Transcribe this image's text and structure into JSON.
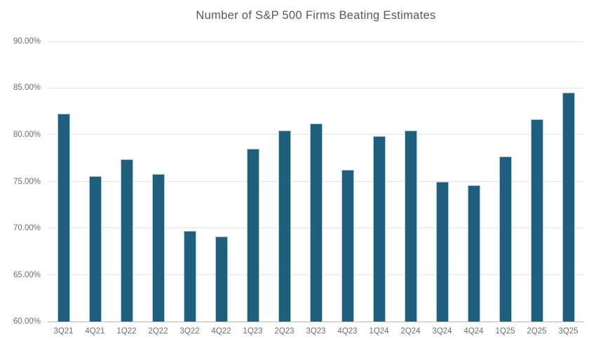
{
  "chart_data": {
    "type": "bar",
    "title": "Number of S&P 500 Firms Beating Estimates",
    "categories": [
      "3Q21",
      "4Q21",
      "1Q22",
      "2Q22",
      "3Q22",
      "4Q22",
      "1Q23",
      "2Q23",
      "3Q23",
      "4Q23",
      "1Q24",
      "2Q24",
      "3Q24",
      "4Q24",
      "1Q25",
      "2Q25",
      "3Q25"
    ],
    "values": [
      82.2,
      75.5,
      77.3,
      75.7,
      69.6,
      69.0,
      78.4,
      80.4,
      81.1,
      76.2,
      79.8,
      80.4,
      74.9,
      74.5,
      77.6,
      81.6,
      84.4
    ],
    "unit": "%",
    "ylim": [
      60,
      90
    ],
    "yticks": [
      {
        "value": 60,
        "label": "60.00%"
      },
      {
        "value": 65,
        "label": "65.00%"
      },
      {
        "value": 70,
        "label": "70.00%"
      },
      {
        "value": 75,
        "label": "75.00%"
      },
      {
        "value": 80,
        "label": "80.00%"
      },
      {
        "value": 85,
        "label": "85.00%"
      },
      {
        "value": 90,
        "label": "90.00%"
      }
    ],
    "grid": true,
    "legend_position": "none",
    "colors": {
      "bar_fill": "#1e5f7d",
      "bar_edge": "#a9cedd",
      "title_text": "#595959",
      "tick_text": "#6e6e6e",
      "gridline": "#e5e5e5",
      "axis_line": "#bdbdbd",
      "background": "#ffffff"
    }
  }
}
